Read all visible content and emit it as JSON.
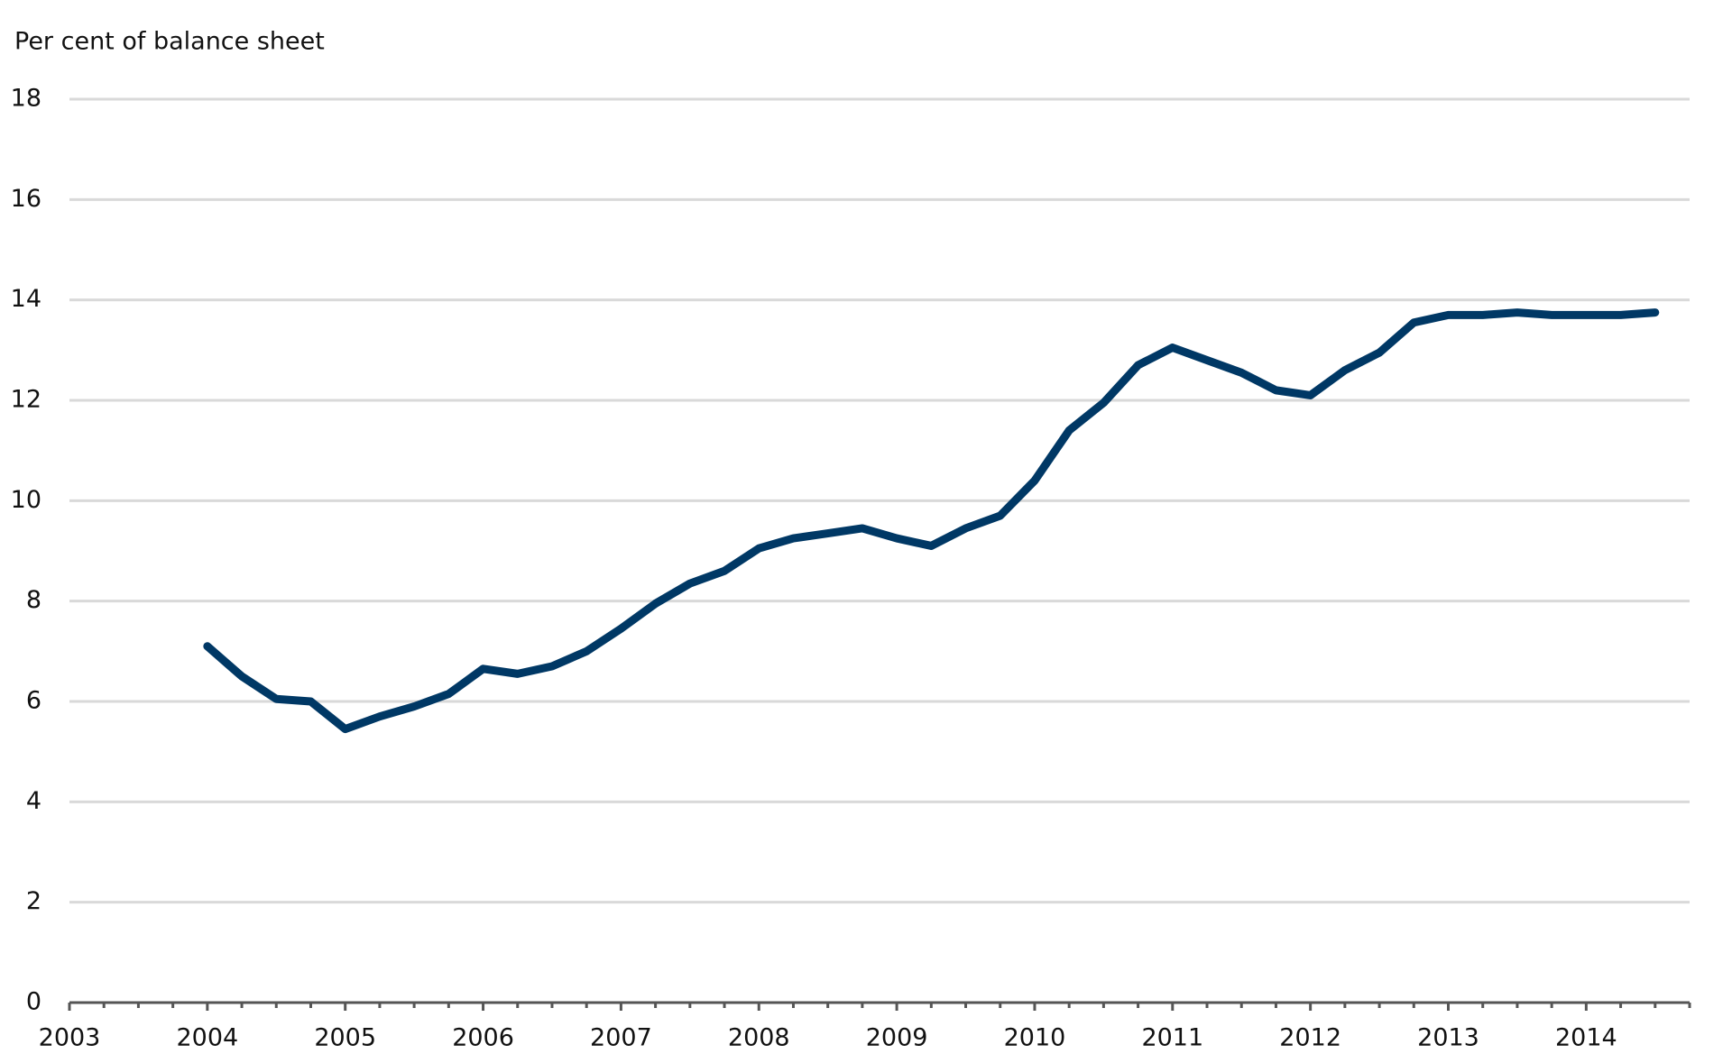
{
  "chart_data": {
    "type": "line",
    "y_label": "Per cent of balance sheet",
    "x": [
      2004,
      2004.25,
      2004.5,
      2004.75,
      2005,
      2005.25,
      2005.5,
      2005.75,
      2006,
      2006.25,
      2006.5,
      2006.75,
      2007,
      2007.25,
      2007.5,
      2007.75,
      2008,
      2008.25,
      2008.5,
      2008.75,
      2009,
      2009.25,
      2009.5,
      2009.75,
      2010,
      2010.25,
      2010.5,
      2010.75,
      2011,
      2011.25,
      2011.5,
      2011.75,
      2012,
      2012.25,
      2012.5,
      2012.75,
      2013,
      2013.25,
      2013.5,
      2013.75,
      2014,
      2014.25,
      2014.5
    ],
    "series": [
      {
        "color": "#003865",
        "values": [
          7.1,
          6.5,
          6.05,
          6.0,
          5.45,
          5.7,
          5.9,
          6.15,
          6.65,
          6.55,
          6.7,
          7.0,
          7.45,
          7.95,
          8.35,
          8.6,
          9.05,
          9.25,
          9.35,
          9.45,
          9.25,
          9.1,
          9.45,
          9.7,
          10.4,
          11.4,
          11.95,
          12.7,
          13.05,
          12.8,
          12.55,
          12.2,
          12.1,
          12.6,
          12.95,
          13.55,
          13.7,
          13.7,
          13.75,
          13.7,
          13.7,
          13.7,
          13.75
        ]
      }
    ],
    "xlim": [
      2003,
      2014.75
    ],
    "ylim": [
      0,
      18
    ],
    "xticks": [
      2003,
      2004,
      2005,
      2006,
      2007,
      2008,
      2009,
      2010,
      2011,
      2012,
      2013,
      2014
    ],
    "xminorticks": [
      2003.25,
      2003.5,
      2003.75,
      2004.25,
      2004.5,
      2004.75,
      2005.25,
      2005.5,
      2005.75,
      2006.25,
      2006.5,
      2006.75,
      2007.25,
      2007.5,
      2007.75,
      2008.25,
      2008.5,
      2008.75,
      2009.25,
      2009.5,
      2009.75,
      2010.25,
      2010.5,
      2010.75,
      2011.25,
      2011.5,
      2011.75,
      2012.25,
      2012.5,
      2012.75,
      2013.25,
      2013.5,
      2013.75,
      2014.25,
      2014.5,
      2014.75
    ],
    "yticks": [
      0,
      2,
      4,
      6,
      8,
      10,
      12,
      14,
      16,
      18
    ],
    "grid": true
  }
}
